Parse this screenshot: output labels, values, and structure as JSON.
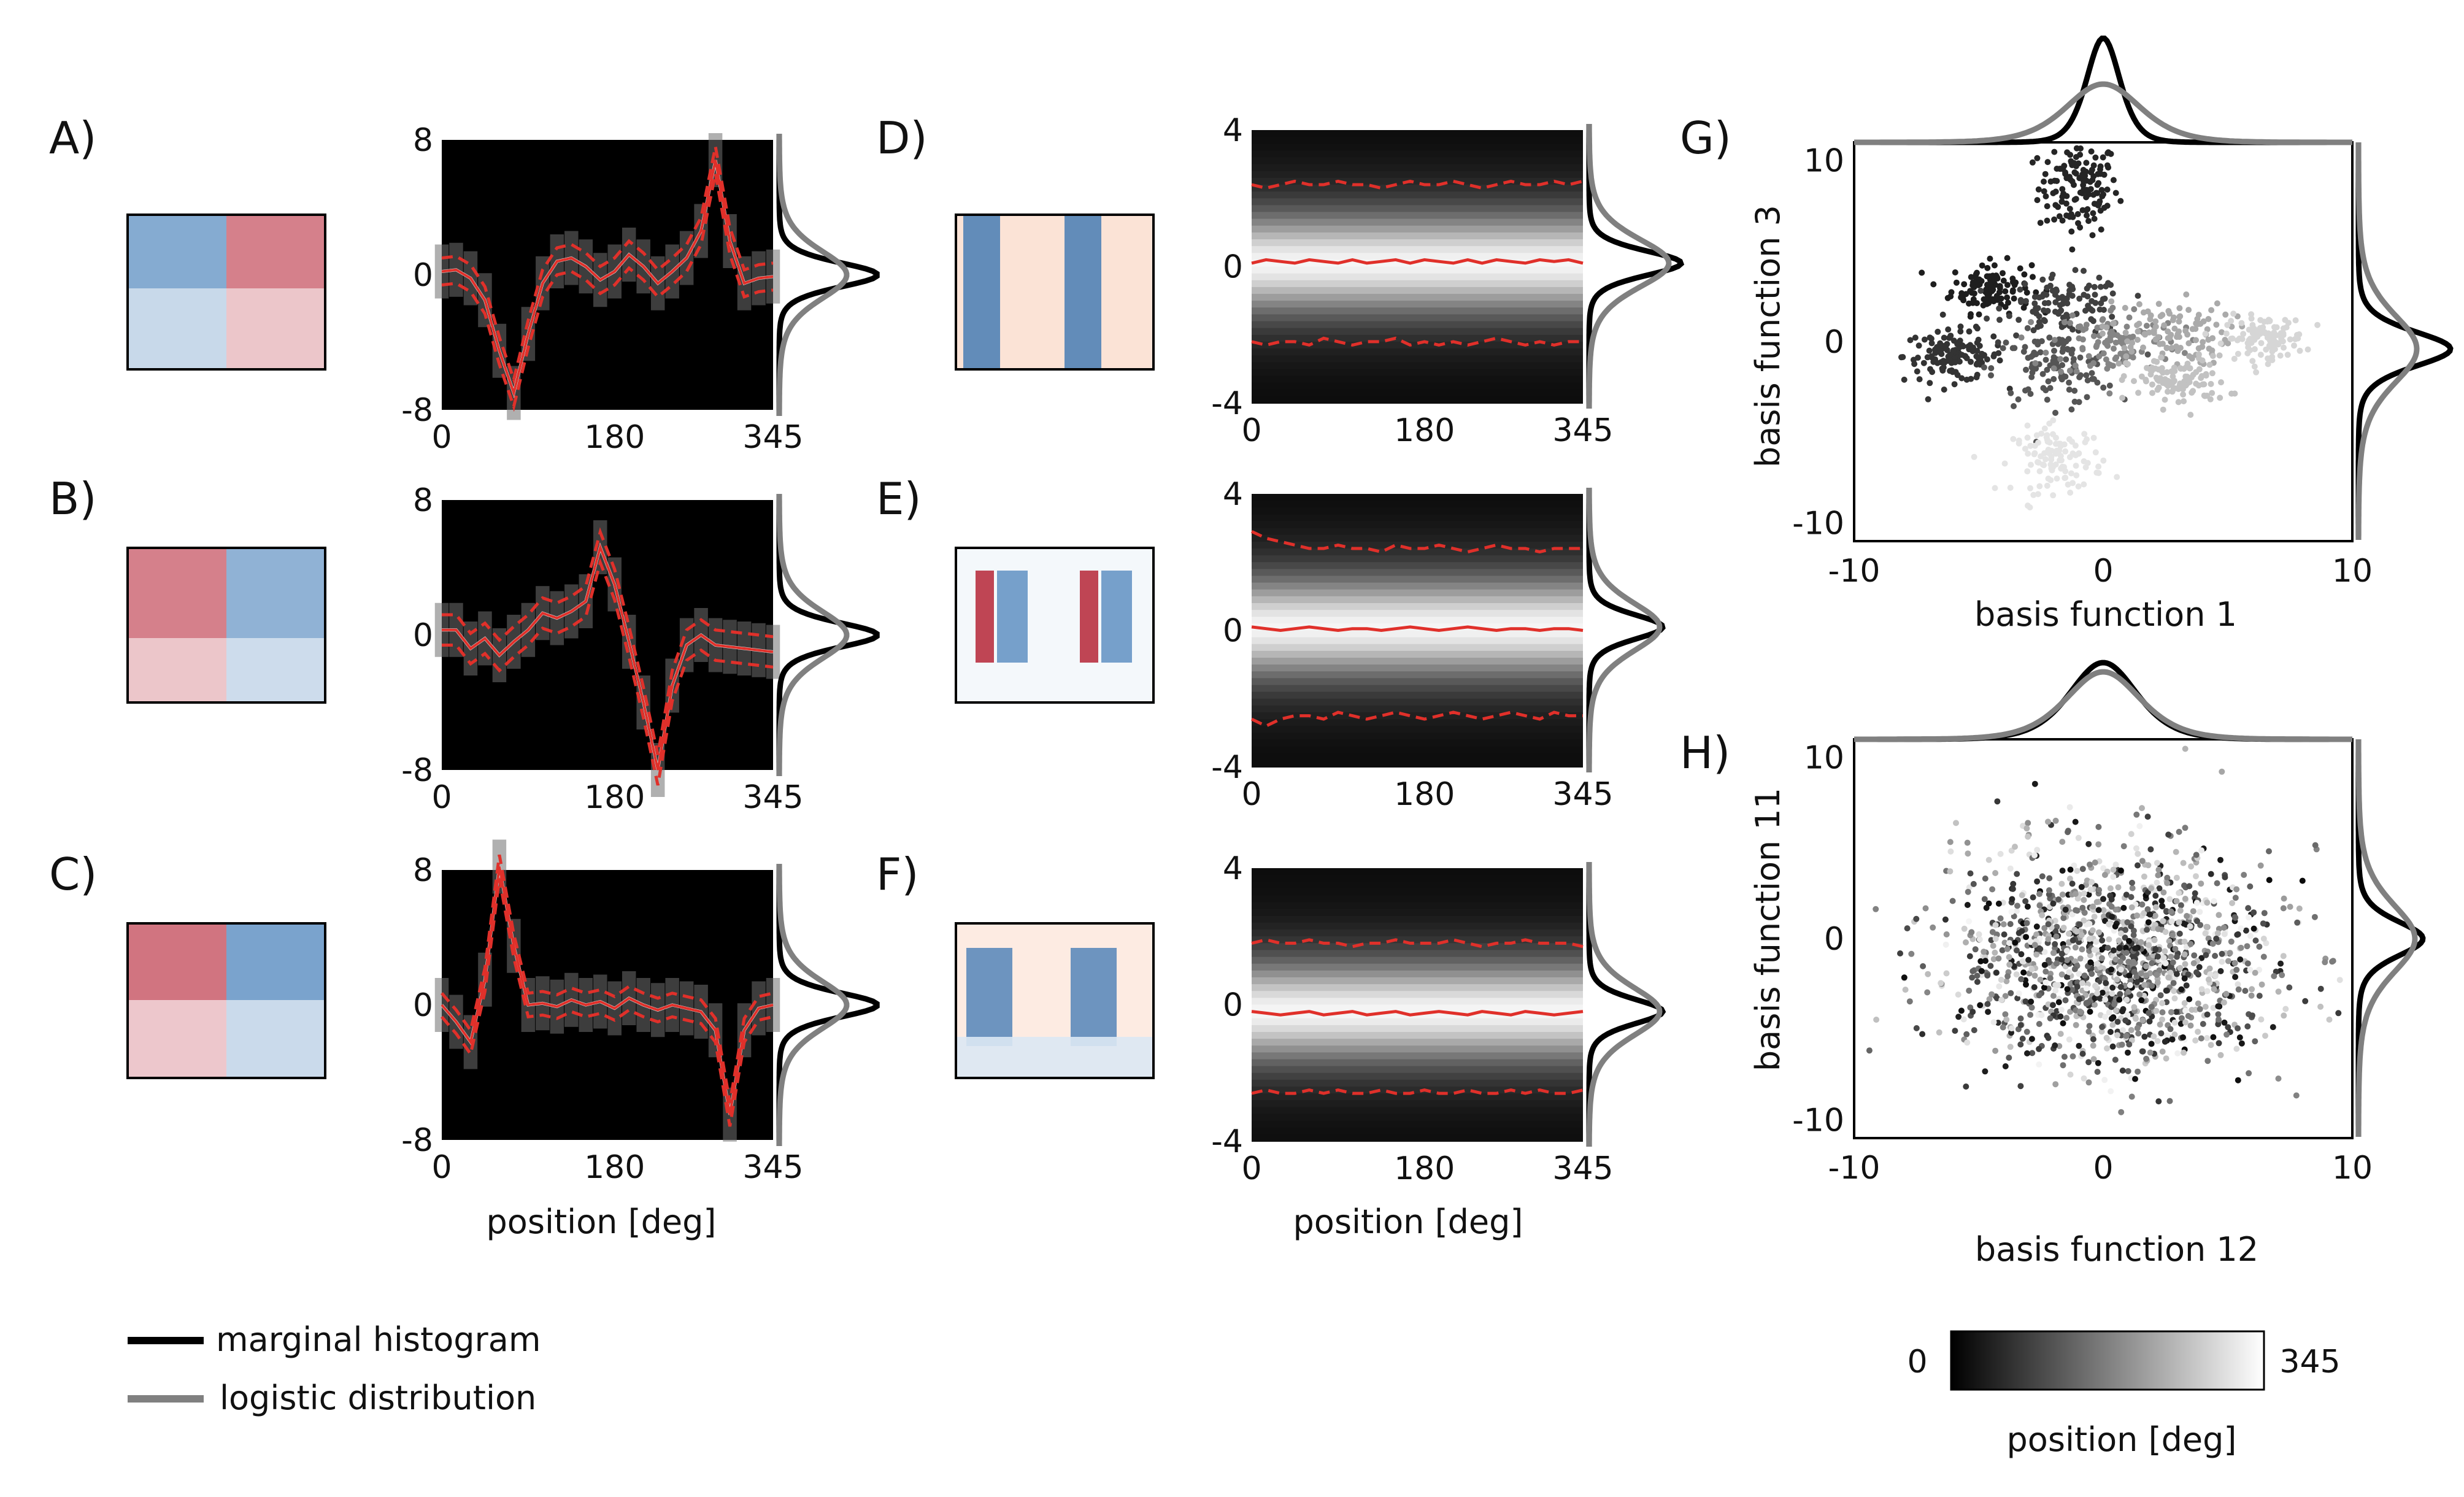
{
  "panel_labels": [
    "A)",
    "B)",
    "C)",
    "D)",
    "E)",
    "F)",
    "G)",
    "H)"
  ],
  "colors": {
    "dark_mean": "#e8e8e8",
    "red": "#e0302a",
    "hist_black": "#000000",
    "logistic_gray": "#808080",
    "cmap_red": "#b2182b",
    "cmap_blue": "#2166ac"
  },
  "legend": {
    "marginal": "marginal histogram",
    "logistic": "logistic distribution"
  },
  "colorbar": {
    "min": "0",
    "max": "345",
    "label": "position [deg]"
  },
  "chart_data": [
    {
      "panel": "A)",
      "type": "heatmap",
      "xlabel": "",
      "x_ticks": [
        "0",
        "180",
        "345"
      ],
      "y_ticks": [
        "8",
        "0",
        "-8"
      ],
      "xlim": [
        0,
        345
      ],
      "ylim": [
        -8,
        8
      ],
      "x": [
        0,
        15,
        30,
        45,
        60,
        75,
        90,
        105,
        120,
        135,
        150,
        165,
        180,
        195,
        210,
        225,
        240,
        255,
        270,
        285,
        300,
        315,
        330,
        345
      ],
      "mean": [
        0.2,
        0.3,
        -0.2,
        -1.5,
        -4.5,
        -7,
        -3.5,
        -0.5,
        0.8,
        1,
        0.5,
        -0.3,
        0.2,
        1.2,
        0.5,
        -0.5,
        0.2,
        1,
        2.6,
        6.8,
        2,
        -0.5,
        -0.2,
        -0.1
      ],
      "band": 0.8
    },
    {
      "panel": "B)",
      "type": "heatmap",
      "xlabel": "",
      "x_ticks": [
        "0",
        "180",
        "345"
      ],
      "y_ticks": [
        "8",
        "0",
        "-8"
      ],
      "xlim": [
        0,
        345
      ],
      "ylim": [
        -8,
        8
      ],
      "x": [
        0,
        15,
        30,
        45,
        60,
        75,
        90,
        105,
        120,
        135,
        150,
        165,
        180,
        195,
        210,
        225,
        240,
        255,
        270,
        285,
        300,
        315,
        330,
        345
      ],
      "mean": [
        0.3,
        0.3,
        -0.8,
        -0.2,
        -1.2,
        -0.4,
        0.3,
        1.3,
        1,
        1.4,
        2,
        5.2,
        3,
        -0.4,
        -4,
        -8,
        -3,
        -0.6,
        0,
        -0.6,
        -0.7,
        -0.8,
        -0.9,
        -1
      ],
      "band": 0.9
    },
    {
      "panel": "C)",
      "type": "heatmap",
      "xlabel": "position [deg]",
      "x_ticks": [
        "0",
        "180",
        "345"
      ],
      "y_ticks": [
        "8",
        "0",
        "-8"
      ],
      "xlim": [
        0,
        345
      ],
      "ylim": [
        -8,
        8
      ],
      "x": [
        0,
        15,
        30,
        45,
        60,
        75,
        90,
        105,
        120,
        135,
        150,
        165,
        180,
        195,
        210,
        225,
        240,
        255,
        270,
        285,
        300,
        315,
        330,
        345
      ],
      "mean": [
        0,
        -1,
        -2.2,
        1.5,
        8.2,
        3.5,
        0,
        0.1,
        -0.1,
        0.3,
        0,
        0.2,
        -0.2,
        0.4,
        0,
        -0.3,
        0,
        -0.2,
        -0.4,
        -1.5,
        -6.5,
        -1.5,
        -0.2,
        0
      ],
      "band": 0.7
    },
    {
      "panel": "D)",
      "type": "heatmap",
      "xlabel": "",
      "x_ticks": [
        "0",
        "180",
        "345"
      ],
      "y_ticks": [
        "4",
        "0",
        "-4"
      ],
      "xlim": [
        0,
        345
      ],
      "ylim": [
        -4,
        4
      ],
      "mean": [
        0.1,
        0.2,
        0.15,
        0.1,
        0.2,
        0.15,
        0.1,
        0.2,
        0.1,
        0.15,
        0.2,
        0.1,
        0.2,
        0.15,
        0.1,
        0.2,
        0.1,
        0.2,
        0.15,
        0.1,
        0.2,
        0.15,
        0.2,
        0.1
      ],
      "upper": [
        2.4,
        2.3,
        2.4,
        2.5,
        2.4,
        2.4,
        2.5,
        2.4,
        2.4,
        2.3,
        2.4,
        2.5,
        2.4,
        2.4,
        2.5,
        2.4,
        2.3,
        2.4,
        2.5,
        2.4,
        2.4,
        2.5,
        2.4,
        2.5
      ],
      "lower": [
        -2.2,
        -2.3,
        -2.2,
        -2.2,
        -2.3,
        -2.1,
        -2.2,
        -2.3,
        -2.2,
        -2.2,
        -2.1,
        -2.3,
        -2.2,
        -2.3,
        -2.2,
        -2.3,
        -2.2,
        -2.1,
        -2.2,
        -2.3,
        -2.2,
        -2.3,
        -2.2,
        -2.2
      ]
    },
    {
      "panel": "E)",
      "type": "heatmap",
      "xlabel": "",
      "x_ticks": [
        "0",
        "180",
        "345"
      ],
      "y_ticks": [
        "4",
        "0",
        "-4"
      ],
      "xlim": [
        0,
        345
      ],
      "ylim": [
        -4,
        4
      ],
      "mean": [
        0.1,
        0.05,
        0,
        0.05,
        0.1,
        0.05,
        0,
        0.05,
        0.05,
        0,
        0.05,
        0.1,
        0.05,
        0,
        0.05,
        0.1,
        0.05,
        0,
        0.05,
        0.05,
        0,
        0.05,
        0.05,
        0
      ],
      "upper": [
        2.9,
        2.7,
        2.6,
        2.5,
        2.4,
        2.4,
        2.5,
        2.4,
        2.4,
        2.3,
        2.5,
        2.4,
        2.4,
        2.5,
        2.4,
        2.3,
        2.4,
        2.5,
        2.4,
        2.4,
        2.3,
        2.4,
        2.4,
        2.4
      ],
      "lower": [
        -2.6,
        -2.8,
        -2.6,
        -2.5,
        -2.5,
        -2.6,
        -2.4,
        -2.5,
        -2.6,
        -2.5,
        -2.4,
        -2.5,
        -2.6,
        -2.5,
        -2.4,
        -2.5,
        -2.6,
        -2.5,
        -2.4,
        -2.5,
        -2.6,
        -2.4,
        -2.5,
        -2.5
      ]
    },
    {
      "panel": "F)",
      "type": "heatmap",
      "xlabel": "position [deg]",
      "x_ticks": [
        "0",
        "180",
        "345"
      ],
      "y_ticks": [
        "4",
        "0",
        "-4"
      ],
      "xlim": [
        0,
        345
      ],
      "ylim": [
        -4,
        4
      ],
      "mean": [
        -0.2,
        -0.25,
        -0.3,
        -0.25,
        -0.2,
        -0.3,
        -0.25,
        -0.2,
        -0.3,
        -0.25,
        -0.2,
        -0.3,
        -0.25,
        -0.2,
        -0.25,
        -0.3,
        -0.2,
        -0.25,
        -0.3,
        -0.2,
        -0.25,
        -0.3,
        -0.25,
        -0.2
      ],
      "upper": [
        1.8,
        1.9,
        1.8,
        1.8,
        1.9,
        1.8,
        1.8,
        1.7,
        1.8,
        1.8,
        1.9,
        1.8,
        1.8,
        1.8,
        1.9,
        1.8,
        1.7,
        1.8,
        1.8,
        1.9,
        1.8,
        1.8,
        1.8,
        1.7
      ],
      "lower": [
        -2.6,
        -2.5,
        -2.6,
        -2.6,
        -2.5,
        -2.6,
        -2.5,
        -2.6,
        -2.6,
        -2.5,
        -2.6,
        -2.6,
        -2.5,
        -2.6,
        -2.6,
        -2.5,
        -2.6,
        -2.6,
        -2.5,
        -2.6,
        -2.5,
        -2.6,
        -2.6,
        -2.5
      ]
    },
    {
      "panel": "G)",
      "type": "scatter",
      "xlabel": "basis function 1",
      "ylabel": "basis function 3",
      "x_ticks": [
        "-10",
        "0",
        "10"
      ],
      "y_ticks": [
        "10",
        "0",
        "-10"
      ],
      "xlim": [
        -10,
        10
      ],
      "ylim": [
        -11,
        11
      ],
      "clusters": [
        {
          "cx": -1.0,
          "cy": 8.5,
          "sx": 0.8,
          "sy": 1.3,
          "pos": 40,
          "n": 140
        },
        {
          "cx": -4.5,
          "cy": 3.0,
          "sx": 0.8,
          "sy": 0.7,
          "pos": 30,
          "n": 120
        },
        {
          "cx": -6.0,
          "cy": -0.8,
          "sx": 1.0,
          "sy": 0.7,
          "pos": 60,
          "n": 130
        },
        {
          "cx": -1.5,
          "cy": 2.0,
          "sx": 1.2,
          "sy": 0.8,
          "pos": 80,
          "n": 110
        },
        {
          "cx": -2.0,
          "cy": -1.5,
          "sx": 1.2,
          "sy": 1.0,
          "pos": 110,
          "n": 110
        },
        {
          "cx": 0.5,
          "cy": 0.0,
          "sx": 1.3,
          "sy": 1.0,
          "pos": 180,
          "n": 110
        },
        {
          "cx": 2.5,
          "cy": 0.5,
          "sx": 1.3,
          "sy": 0.9,
          "pos": 235,
          "n": 110
        },
        {
          "cx": 3.0,
          "cy": -2.2,
          "sx": 1.0,
          "sy": 0.7,
          "pos": 270,
          "n": 110
        },
        {
          "cx": 6.5,
          "cy": 0.2,
          "sx": 0.8,
          "sy": 0.6,
          "pos": 300,
          "n": 110
        },
        {
          "cx": -1.8,
          "cy": -6.5,
          "sx": 0.9,
          "sy": 0.9,
          "pos": 320,
          "n": 110
        }
      ]
    },
    {
      "panel": "H)",
      "type": "scatter",
      "xlabel": "basis function 12",
      "ylabel": "basis function 11",
      "x_ticks": [
        "-10",
        "0",
        "10"
      ],
      "y_ticks": [
        "10",
        "0",
        "-10"
      ],
      "xlim": [
        -10,
        10
      ],
      "ylim": [
        -11,
        11
      ],
      "clusters": [
        {
          "cx": 0.5,
          "cy": -1.0,
          "sx": 3.2,
          "sy": 3.0,
          "pos": -1,
          "n": 1400
        }
      ]
    }
  ]
}
